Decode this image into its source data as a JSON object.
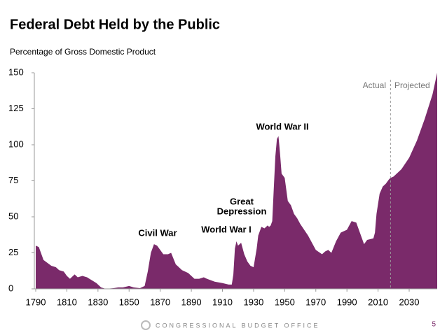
{
  "chart_data": {
    "type": "area",
    "title": "Federal Debt Held by the Public",
    "subtitle": "Percentage of Gross Domestic Product",
    "color": "#7a2a6a",
    "x": [
      1790,
      1792,
      1795,
      1800,
      1803,
      1805,
      1808,
      1810,
      1812,
      1815,
      1817,
      1820,
      1823,
      1826,
      1829,
      1832,
      1835,
      1840,
      1843,
      1846,
      1850,
      1853,
      1857,
      1860,
      1862,
      1864,
      1866,
      1868,
      1870,
      1872,
      1875,
      1877,
      1880,
      1884,
      1888,
      1892,
      1895,
      1898,
      1900,
      1905,
      1910,
      1914,
      1916,
      1917,
      1918,
      1919,
      1920,
      1922,
      1924,
      1926,
      1928,
      1930,
      1932,
      1933,
      1934,
      1935,
      1937,
      1939,
      1940,
      1941,
      1942,
      1943,
      1944,
      1945,
      1946,
      1947,
      1948,
      1950,
      1952,
      1954,
      1956,
      1958,
      1960,
      1965,
      1970,
      1974,
      1976,
      1978,
      1980,
      1983,
      1986,
      1990,
      1993,
      1996,
      2000,
      2001,
      2003,
      2007,
      2008,
      2009,
      2011,
      2013,
      2015,
      2017,
      2018,
      2020,
      2025,
      2030,
      2035,
      2040,
      2045,
      2048
    ],
    "values": [
      30,
      29,
      20,
      16,
      15,
      13,
      12,
      9,
      7,
      10,
      8,
      9,
      8,
      6,
      4,
      1,
      0,
      0.5,
      1,
      1,
      2,
      1,
      0.5,
      2,
      12,
      25,
      31,
      30,
      27,
      24,
      24,
      25,
      17,
      13,
      11,
      7,
      7,
      8,
      7,
      5,
      4,
      3,
      3,
      10,
      28,
      33,
      30,
      32,
      24,
      19,
      16,
      15,
      28,
      37,
      40,
      43,
      42,
      44,
      43,
      44,
      47,
      70,
      92,
      104,
      106,
      94,
      80,
      77,
      61,
      58,
      52,
      49,
      45,
      37,
      27,
      24,
      26,
      27,
      25,
      33,
      39,
      41,
      47,
      46,
      34,
      31,
      34,
      35,
      39,
      52,
      66,
      71,
      73,
      76,
      77,
      78,
      83,
      91,
      103,
      118,
      135,
      150
    ],
    "xlim": [
      1790,
      2048
    ],
    "xticks": [
      1790,
      1810,
      1830,
      1850,
      1870,
      1890,
      1910,
      1930,
      1950,
      1970,
      1990,
      2010,
      2030
    ],
    "ylim": [
      0,
      150
    ],
    "yticks": [
      0,
      25,
      50,
      75,
      100,
      125,
      150
    ],
    "projection_start": 2018,
    "annotations": {
      "civil_war": "Civil War",
      "world_war_i": "World War I",
      "great_depression": [
        "Great",
        "Depression"
      ],
      "world_war_ii": "World War II",
      "actual": "Actual",
      "projected": "Projected"
    }
  },
  "footer": {
    "organization": "CONGRESSIONAL BUDGET OFFICE",
    "page": "5"
  }
}
